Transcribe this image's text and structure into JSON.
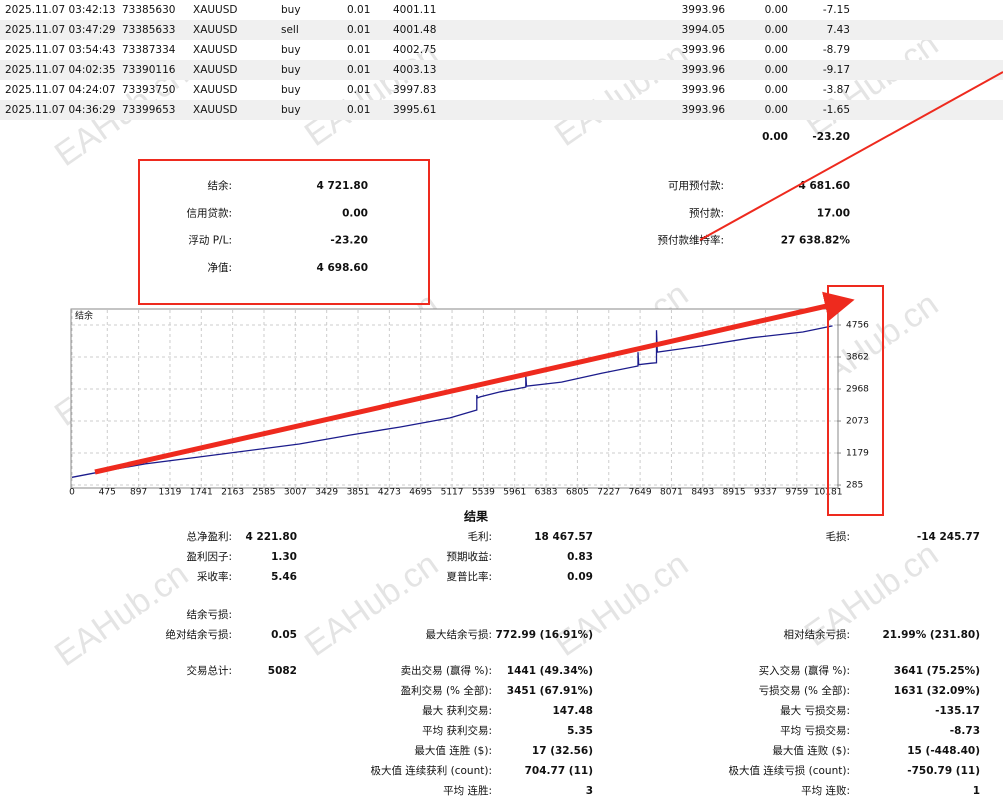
{
  "watermark": "EAHub.cn",
  "trades": {
    "rows": [
      [
        "2025.11.07 03:42:13",
        "73385630",
        "XAUUSD",
        "buy",
        "0.01",
        "4001.11",
        "3993.96",
        "0.00",
        "-7.15"
      ],
      [
        "2025.11.07 03:47:29",
        "73385633",
        "XAUUSD",
        "sell",
        "0.01",
        "4001.48",
        "3994.05",
        "0.00",
        "7.43"
      ],
      [
        "2025.11.07 03:54:43",
        "73387334",
        "XAUUSD",
        "buy",
        "0.01",
        "4002.75",
        "3993.96",
        "0.00",
        "-8.79"
      ],
      [
        "2025.11.07 04:02:35",
        "73390116",
        "XAUUSD",
        "buy",
        "0.01",
        "4003.13",
        "3993.96",
        "0.00",
        "-9.17"
      ],
      [
        "2025.11.07 04:24:07",
        "73393750",
        "XAUUSD",
        "buy",
        "0.01",
        "3997.83",
        "3993.96",
        "0.00",
        "-3.87"
      ],
      [
        "2025.11.07 04:36:29",
        "73399653",
        "XAUUSD",
        "buy",
        "0.01",
        "3995.61",
        "3993.96",
        "0.00",
        "-1.65"
      ]
    ],
    "totals": [
      "0.00",
      "-23.20"
    ]
  },
  "account": {
    "left": [
      {
        "label": "结余:",
        "value": "4 721.80"
      },
      {
        "label": "信用贷款:",
        "value": "0.00"
      },
      {
        "label": "浮动 P/L:",
        "value": "-23.20"
      },
      {
        "label": "净值:",
        "value": "4 698.60"
      }
    ],
    "right": [
      {
        "label": "可用预付款:",
        "value": "4 681.60"
      },
      {
        "label": "预付款:",
        "value": "17.00"
      },
      {
        "label": "预付款维持率:",
        "value": "27 638.82%"
      }
    ]
  },
  "chart_data": {
    "type": "line",
    "title": "结余",
    "x": [
      0,
      500,
      1000,
      1000,
      1010,
      1710,
      3060,
      3740,
      4420,
      5090,
      5450,
      5450,
      5460,
      5500,
      5770,
      6110,
      6110,
      6120,
      6590,
      7130,
      7620,
      7620,
      7630,
      7800,
      7870,
      7870,
      7880,
      8470,
      9160,
      9840,
      10240
    ],
    "values": [
      500,
      700,
      880,
      950,
      880,
      1067,
      1430,
      1680,
      1905,
      2160,
      2380,
      2800,
      2720,
      2750,
      2890,
      3020,
      3360,
      3050,
      3160,
      3410,
      3610,
      4000,
      3650,
      3690,
      3700,
      4610,
      4000,
      4170,
      4400,
      4560,
      4730
    ],
    "color": "#1c1c8c",
    "xlim": [
      0,
      10300
    ],
    "ylim": [
      230,
      5175
    ],
    "xticks": [
      0,
      475,
      897,
      1319,
      1741,
      2163,
      2585,
      3007,
      3429,
      3851,
      4273,
      4695,
      5117,
      5539,
      5961,
      6383,
      6805,
      7227,
      7649,
      8071,
      8493,
      8915,
      9337,
      9759,
      10181
    ],
    "yticks": [
      285,
      1179,
      2073,
      2968,
      3862,
      4756
    ],
    "grid": true
  },
  "results": {
    "title": "结果",
    "rows": [
      [
        {
          "label": "总净盈利:",
          "value": "4 221.80"
        },
        {
          "label": "毛利:",
          "value": "18 467.57"
        },
        {
          "label": "毛损:",
          "value": "-14 245.77"
        }
      ],
      [
        {
          "label": "盈利因子:",
          "value": "1.30"
        },
        {
          "label": "预期收益:",
          "value": "0.83"
        },
        null
      ],
      [
        {
          "label": "采收率:",
          "value": "5.46"
        },
        {
          "label": "夏普比率:",
          "value": "0.09"
        },
        null
      ],
      [
        {
          "label": "结余亏损:"
        },
        null,
        null
      ],
      [
        {
          "label": "绝对结余亏损:",
          "value": "0.05"
        },
        {
          "label": "最大结余亏损:",
          "value": "772.99 (16.91%)"
        },
        {
          "label": "相对结余亏损:",
          "value": "21.99% (231.80)"
        }
      ],
      [
        {
          "label": "交易总计:",
          "value": "5082"
        },
        {
          "label": "卖出交易 (赢得 %):",
          "value": "1441 (49.34%)"
        },
        {
          "label": "买入交易 (赢得 %):",
          "value": "3641 (75.25%)"
        }
      ],
      [
        null,
        {
          "label": "盈利交易 (% 全部):",
          "value": "3451 (67.91%)"
        },
        {
          "label": "亏损交易 (% 全部):",
          "value": "1631 (32.09%)"
        }
      ],
      [
        null,
        {
          "label": "最大 获利交易:",
          "value": "147.48"
        },
        {
          "label": "最大 亏损交易:",
          "value": "-135.17"
        }
      ],
      [
        null,
        {
          "label": "平均 获利交易:",
          "value": "5.35"
        },
        {
          "label": "平均 亏损交易:",
          "value": "-8.73"
        }
      ],
      [
        null,
        {
          "label": "最大值 连胜 ($):",
          "value": "17 (32.56)"
        },
        {
          "label": "最大值 连败 ($):",
          "value": "15 (-448.40)"
        }
      ],
      [
        null,
        {
          "label": "极大值 连续获利 (count):",
          "value": "704.77 (11)"
        },
        {
          "label": "极大值 连续亏损 (count):",
          "value": "-750.79 (11)"
        }
      ],
      [
        null,
        {
          "label": "平均 连胜:",
          "value": "3"
        },
        {
          "label": "平均 连败:",
          "value": "1"
        }
      ]
    ]
  }
}
